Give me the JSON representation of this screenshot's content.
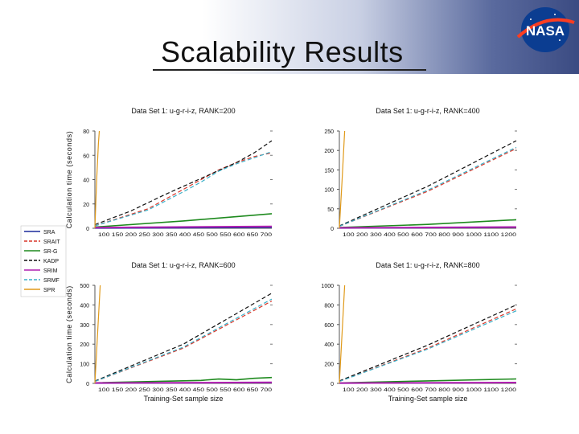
{
  "slide": {
    "title": "Scalability Results",
    "logo_text": "NASA"
  },
  "chart_data": [
    {
      "type": "line",
      "title": "Data Set 1: u-g-r-i-z, RANK=200",
      "ylabel": "Calculation time (seconds)",
      "xlabel": "",
      "yticks": [
        "0",
        "20",
        "40",
        "60",
        "80"
      ],
      "ylim": [
        0,
        80
      ],
      "xlim": [
        0,
        100
      ],
      "x_tick_text": "100 150 200 250 300 350 400 450 500 550 600 650 700",
      "series": [
        {
          "name": "SRA",
          "values": [
            [
              0,
              0
            ],
            [
              100,
              0.5
            ]
          ]
        },
        {
          "name": "SRAIT",
          "values": [
            [
              0,
              2
            ],
            [
              30,
              16
            ],
            [
              50,
              32
            ],
            [
              60,
              40
            ],
            [
              70,
              48
            ],
            [
              80,
              54
            ],
            [
              90,
              59
            ],
            [
              100,
              62
            ]
          ]
        },
        {
          "name": "SR-G",
          "values": [
            [
              0,
              1
            ],
            [
              50,
              6
            ],
            [
              100,
              12
            ]
          ]
        },
        {
          "name": "KADP",
          "values": [
            [
              0,
              3
            ],
            [
              20,
              14
            ],
            [
              40,
              28
            ],
            [
              60,
              41
            ],
            [
              80,
              54
            ],
            [
              90,
              62
            ],
            [
              100,
              72
            ]
          ]
        },
        {
          "name": "SRIM",
          "values": [
            [
              0,
              0.5
            ],
            [
              100,
              1.5
            ]
          ]
        },
        {
          "name": "SRMF",
          "values": [
            [
              0,
              2
            ],
            [
              30,
              15
            ],
            [
              50,
              30
            ],
            [
              60,
              38
            ],
            [
              70,
              47
            ],
            [
              80,
              53
            ],
            [
              90,
              58
            ],
            [
              100,
              63
            ]
          ]
        },
        {
          "name": "SPR",
          "values": [
            [
              0,
              0
            ],
            [
              1,
              40
            ],
            [
              2,
              70
            ],
            [
              2.5,
              80
            ]
          ]
        }
      ]
    },
    {
      "type": "line",
      "title": "Data Set 1: u-g-r-i-z, RANK=400",
      "ylabel": "",
      "xlabel": "",
      "yticks": [
        "0",
        "50",
        "100",
        "150",
        "200",
        "250"
      ],
      "ylim": [
        0,
        250
      ],
      "xlim": [
        0,
        100
      ],
      "x_tick_text": "100 200 300 400 500 600 700 800 900 1000 1100 1200",
      "series": [
        {
          "name": "SRA",
          "values": [
            [
              0,
              0
            ],
            [
              100,
              2
            ]
          ]
        },
        {
          "name": "SRAIT",
          "values": [
            [
              0,
              5
            ],
            [
              50,
              95
            ],
            [
              100,
              205
            ]
          ]
        },
        {
          "name": "SR-G",
          "values": [
            [
              0,
              2
            ],
            [
              50,
              10
            ],
            [
              100,
              22
            ]
          ]
        },
        {
          "name": "KADP",
          "values": [
            [
              0,
              6
            ],
            [
              50,
              108
            ],
            [
              100,
              225
            ]
          ]
        },
        {
          "name": "SRIM",
          "values": [
            [
              0,
              1
            ],
            [
              100,
              3
            ]
          ]
        },
        {
          "name": "SRMF",
          "values": [
            [
              0,
              5
            ],
            [
              50,
              98
            ],
            [
              100,
              208
            ]
          ]
        },
        {
          "name": "SPR",
          "values": [
            [
              0,
              0
            ],
            [
              1.5,
              120
            ],
            [
              3,
              250
            ]
          ]
        }
      ]
    },
    {
      "type": "line",
      "title": "Data Set 1: u-g-r-i-z, RANK=600",
      "ylabel": "Calculation time (seconds)",
      "xlabel": "Training-Set sample size",
      "yticks": [
        "0",
        "100",
        "200",
        "300",
        "400",
        "500"
      ],
      "ylim": [
        0,
        500
      ],
      "xlim": [
        0,
        100
      ],
      "x_tick_text": "100 150 200 250 300 350 400 450 500 550 600 650 700",
      "series": [
        {
          "name": "SRA",
          "values": [
            [
              0,
              0
            ],
            [
              100,
              3
            ]
          ]
        },
        {
          "name": "SRAIT",
          "values": [
            [
              0,
              10
            ],
            [
              50,
              180
            ],
            [
              100,
              420
            ]
          ]
        },
        {
          "name": "SR-G",
          "values": [
            [
              0,
              3
            ],
            [
              60,
              15
            ],
            [
              70,
              22
            ],
            [
              80,
              18
            ],
            [
              90,
              26
            ],
            [
              100,
              30
            ]
          ]
        },
        {
          "name": "KADP",
          "values": [
            [
              0,
              12
            ],
            [
              50,
              200
            ],
            [
              100,
              460
            ]
          ]
        },
        {
          "name": "SRIM",
          "values": [
            [
              0,
              2
            ],
            [
              100,
              5
            ]
          ]
        },
        {
          "name": "SRMF",
          "values": [
            [
              0,
              10
            ],
            [
              50,
              185
            ],
            [
              100,
              430
            ]
          ]
        },
        {
          "name": "SPR",
          "values": [
            [
              0,
              0
            ],
            [
              1.5,
              250
            ],
            [
              3,
              500
            ]
          ]
        }
      ]
    },
    {
      "type": "line",
      "title": "Data Set 1: u-g-r-i-z, RANK=800",
      "ylabel": "",
      "xlabel": "Training-Set sample size",
      "yticks": [
        "0",
        "200",
        "400",
        "600",
        "800",
        "1000"
      ],
      "ylim": [
        0,
        1000
      ],
      "xlim": [
        0,
        100
      ],
      "x_tick_text": "100 200 300 400 500 600 700 800 900 1000 1100 1200",
      "series": [
        {
          "name": "SRA",
          "values": [
            [
              0,
              0
            ],
            [
              100,
              6
            ]
          ]
        },
        {
          "name": "SRAIT",
          "values": [
            [
              0,
              20
            ],
            [
              50,
              360
            ],
            [
              100,
              760
            ]
          ]
        },
        {
          "name": "SR-G",
          "values": [
            [
              0,
              5
            ],
            [
              50,
              25
            ],
            [
              100,
              45
            ]
          ]
        },
        {
          "name": "KADP",
          "values": [
            [
              0,
              25
            ],
            [
              50,
              390
            ],
            [
              100,
              800
            ]
          ]
        },
        {
          "name": "SRIM",
          "values": [
            [
              0,
              3
            ],
            [
              100,
              8
            ]
          ]
        },
        {
          "name": "SRMF",
          "values": [
            [
              0,
              20
            ],
            [
              50,
              350
            ],
            [
              100,
              740
            ]
          ]
        },
        {
          "name": "SPR",
          "values": [
            [
              0,
              0
            ],
            [
              1.5,
              500
            ],
            [
              3,
              1000
            ]
          ]
        }
      ]
    }
  ],
  "legend": [
    {
      "name": "SRA",
      "color": "#1a2a9a",
      "dash": "solid"
    },
    {
      "name": "SRAIT",
      "color": "#d9372a",
      "dash": "dashed"
    },
    {
      "name": "SR-G",
      "color": "#1e8a1e",
      "dash": "solid"
    },
    {
      "name": "KADP",
      "color": "#111111",
      "dash": "dashed"
    },
    {
      "name": "SRIM",
      "color": "#b01fb0",
      "dash": "solid"
    },
    {
      "name": "SRMF",
      "color": "#3ab0c8",
      "dash": "dashed"
    },
    {
      "name": "SPR",
      "color": "#e09a1a",
      "dash": "solid"
    }
  ]
}
